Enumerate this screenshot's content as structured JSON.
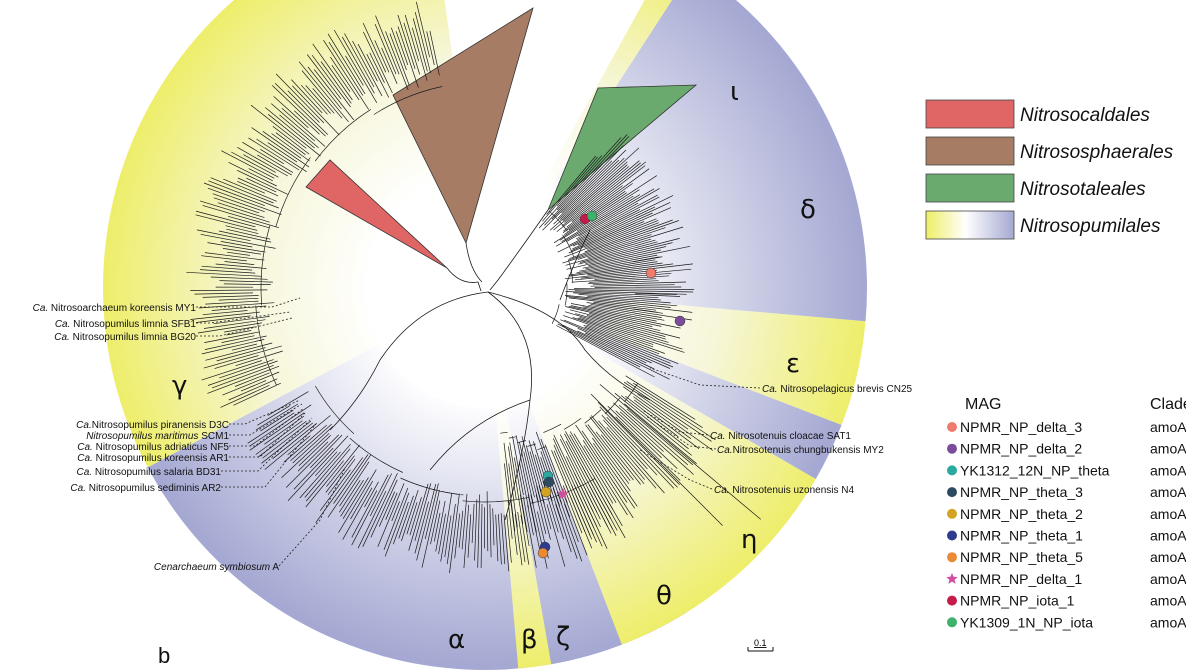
{
  "panel_label": "b",
  "legend": [
    {
      "name": "Nitrosocaldales",
      "color": "#e06666"
    },
    {
      "name": "Nitrososphaerales",
      "color": "#a67c64"
    },
    {
      "name": "Nitrosotaleales",
      "color": "#6aaa6f"
    },
    {
      "name": "Nitrosopumilales",
      "gradient": [
        "#eeee66",
        "#ffffff",
        "#a5a9d2"
      ]
    }
  ],
  "mag_table": {
    "header_mag": "MAG",
    "header_clade": "Clade",
    "rows": [
      {
        "mag": "NPMR_NP_delta_3",
        "clade": "amoA-",
        "color": "#ee7b6e",
        "marker": "circle"
      },
      {
        "mag": "NPMR_NP_delta_2",
        "clade": "amoA-",
        "color": "#7a4c9a",
        "marker": "circle"
      },
      {
        "mag": "YK1312_12N_NP_theta",
        "clade": "amoA-",
        "color": "#2aa9a1",
        "marker": "circle"
      },
      {
        "mag": "NPMR_NP_theta_3",
        "clade": "amoA-",
        "color": "#2d4a63",
        "marker": "circle"
      },
      {
        "mag": "NPMR_NP_theta_2",
        "clade": "amoA-",
        "color": "#d3a324",
        "marker": "circle"
      },
      {
        "mag": "NPMR_NP_theta_1",
        "clade": "amoA-",
        "color": "#2f3b8f",
        "marker": "circle"
      },
      {
        "mag": "NPMR_NP_theta_5",
        "clade": "amoA-",
        "color": "#ea8a34",
        "marker": "circle"
      },
      {
        "mag": "NPMR_NP_delta_1",
        "clade": "amoA-",
        "color": "#d04f9f",
        "marker": "star"
      },
      {
        "mag": "NPMR_NP_iota_1",
        "clade": "amoA-",
        "color": "#c51b4a",
        "marker": "circle"
      },
      {
        "mag": "YK1309_1N_NP_iota",
        "clade": "amoA-",
        "color": "#3db26c",
        "marker": "circle"
      }
    ]
  },
  "clades": [
    {
      "symbol": "α"
    },
    {
      "symbol": "β"
    },
    {
      "symbol": "ζ"
    },
    {
      "symbol": "θ"
    },
    {
      "symbol": "η"
    },
    {
      "symbol": "ε"
    },
    {
      "symbol": "δ"
    },
    {
      "symbol": "ι"
    },
    {
      "symbol": "γ"
    }
  ],
  "reference_labels": [
    {
      "prefix": "Ca.",
      "name": " Nitrosoarchaeum koreensis MY1"
    },
    {
      "prefix": "Ca.",
      "name": " Nitrosopumilus limnia SFB1"
    },
    {
      "prefix": "Ca.",
      "name": " Nitrosopumilus limnia BG20"
    },
    {
      "prefix": "Ca.",
      "name": "Nitrosopumilus piranensis D3C"
    },
    {
      "prefix": "Nitrosopumilus maritimus",
      "name": " SCM1"
    },
    {
      "prefix": "Ca.",
      "name": " Nitrosopumilus adriaticus NF5"
    },
    {
      "prefix": "Ca.",
      "name": " Nitrosopumilus koreensis AR1"
    },
    {
      "prefix": "Ca.",
      "name": " Nitrosopumilus salaria BD31"
    },
    {
      "prefix": "Ca.",
      "name": " Nitrosopumilus sediminis AR2"
    },
    {
      "prefix": "Cenarchaeum symbiosum",
      "name": " A"
    },
    {
      "prefix": "Ca.",
      "name": " Nitrosopelagicus brevis CN25"
    },
    {
      "prefix": "Ca.",
      "name": " Nitrosotenuis cloacae SAT1"
    },
    {
      "prefix": "Ca.",
      "name": "Nitrosotenuis chungbukensis MY2"
    },
    {
      "prefix": "Ca.",
      "name": " Nitrosotenuis uzonensis N4"
    }
  ],
  "scale_bar": "0.1"
}
